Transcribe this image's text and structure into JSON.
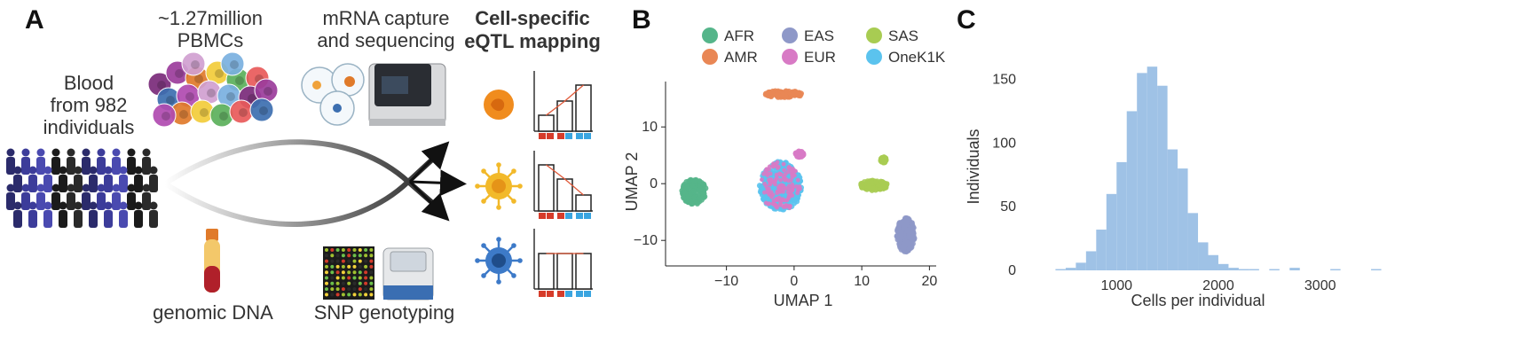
{
  "panel_a": {
    "label": "A",
    "blood_text": [
      "Blood",
      "from 982",
      "individuals"
    ],
    "pbmc_text": [
      "~1.27million",
      "PBMCs"
    ],
    "mrna_text": [
      "mRNA capture",
      "and sequencing"
    ],
    "eqtl_title": [
      "Cell-specific",
      "eQTL mapping"
    ],
    "dna_text": "genomic DNA",
    "snp_text": "SNP genotyping",
    "colors": {
      "red": "#d63c2a",
      "blue": "#3aa5e0",
      "trend": "#e05a3a"
    }
  },
  "panel_b": {
    "label": "B",
    "chart_data": {
      "type": "scatter",
      "xlabel": "UMAP 1",
      "ylabel": "UMAP 2",
      "xlim": [
        -19,
        21
      ],
      "ylim": [
        -14.5,
        18
      ],
      "xticks": [
        -10,
        0,
        10,
        20
      ],
      "yticks": [
        -10,
        0,
        10
      ],
      "legend": [
        {
          "name": "AFR",
          "color": "#55b58a"
        },
        {
          "name": "EAS",
          "color": "#8e98c8"
        },
        {
          "name": "SAS",
          "color": "#a8cc52"
        },
        {
          "name": "AMR",
          "color": "#e98755"
        },
        {
          "name": "EUR",
          "color": "#d87ac5"
        },
        {
          "name": "OneK1K",
          "color": "#5bc3ee"
        }
      ],
      "clusters": [
        {
          "name": "AFR",
          "cx": -14.8,
          "cy": -1.4,
          "rx": 1.8,
          "ry": 2.2
        },
        {
          "name": "AMR",
          "cx": -1.5,
          "cy": 15.8,
          "rx": 2.8,
          "ry": 0.6
        },
        {
          "name": "OneK1K",
          "cx": -2.0,
          "cy": -0.4,
          "rx": 3.1,
          "ry": 4.3
        },
        {
          "name": "EUR",
          "cx": 0.8,
          "cy": 5.2,
          "rx": 0.6,
          "ry": 0.5
        },
        {
          "name": "SAS",
          "cx": 11.8,
          "cy": -0.3,
          "rx": 2.0,
          "ry": 0.9
        },
        {
          "name": "SAS",
          "cx": 13.2,
          "cy": 4.2,
          "rx": 0.4,
          "ry": 0.5
        },
        {
          "name": "EAS",
          "cx": 16.5,
          "cy": -9.0,
          "rx": 1.3,
          "ry": 3.0
        }
      ]
    }
  },
  "panel_c": {
    "label": "C",
    "chart_data": {
      "type": "bar",
      "xlabel": "Cells per individual",
      "ylabel": "Individuals",
      "xlim": [
        100,
        3700
      ],
      "ylim": [
        0,
        165
      ],
      "xticks": [
        1000,
        2000,
        3000
      ],
      "yticks": [
        0,
        50,
        100,
        150
      ],
      "bin_width": 100,
      "bin_starts": [
        300,
        400,
        500,
        600,
        700,
        800,
        900,
        1000,
        1100,
        1200,
        1300,
        1400,
        1500,
        1600,
        1700,
        1800,
        1900,
        2000,
        2100,
        2200,
        2300,
        2400,
        2500,
        2600,
        2700,
        2800,
        2900,
        3000,
        3100,
        3200,
        3300,
        3400,
        3500
      ],
      "counts": [
        0,
        1,
        2,
        6,
        15,
        32,
        60,
        85,
        125,
        155,
        160,
        145,
        95,
        80,
        45,
        22,
        12,
        5,
        2,
        1,
        1,
        0,
        1,
        0,
        2,
        0,
        0,
        0,
        1,
        0,
        0,
        0,
        1
      ],
      "color": "#9fc2e6"
    }
  }
}
